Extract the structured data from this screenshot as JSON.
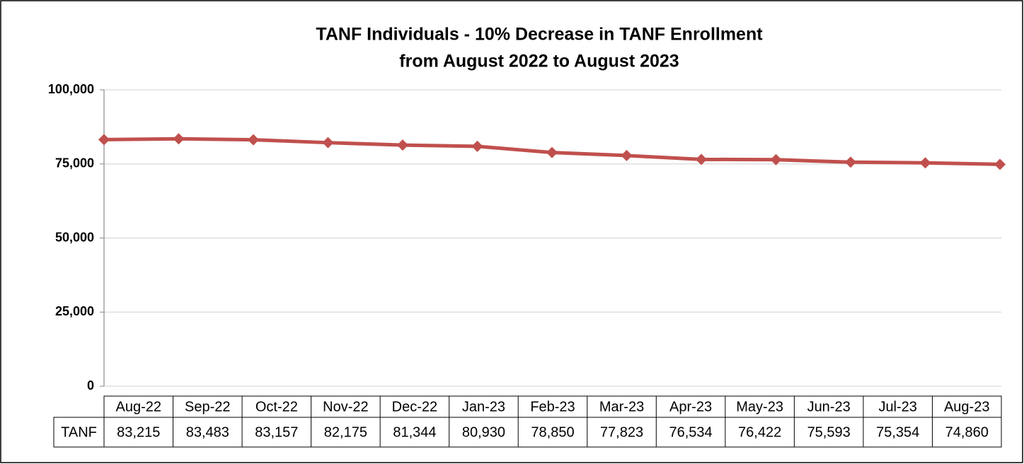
{
  "chart_data": {
    "type": "line",
    "title": [
      "TANF Individuals - 10% Decrease in TANF Enrollment",
      "from August 2022 to August 2023"
    ],
    "categories": [
      "Aug-22",
      "Sep-22",
      "Oct-22",
      "Nov-22",
      "Dec-22",
      "Jan-23",
      "Feb-23",
      "Mar-23",
      "Apr-23",
      "May-23",
      "Jun-23",
      "Jul-23",
      "Aug-23"
    ],
    "series": [
      {
        "name": "TANF",
        "color": "#c0504d",
        "values": [
          83215,
          83483,
          83157,
          82175,
          81344,
          80930,
          78850,
          77823,
          76534,
          76422,
          75593,
          75354,
          74860
        ],
        "value_labels": [
          "83,215",
          "83,483",
          "83,157",
          "82,175",
          "81,344",
          "80,930",
          "78,850",
          "77,823",
          "76,534",
          "76,422",
          "75,593",
          "75,354",
          "74,860"
        ]
      }
    ],
    "ylim": [
      0,
      100000
    ],
    "yticks": [
      0,
      {
        "value": 25000,
        "label": "25,000"
      },
      {
        "value": 50000,
        "label": "50,000"
      },
      {
        "value": 75000,
        "label": "75,000"
      },
      {
        "value": 100000,
        "label": "100,000"
      }
    ],
    "grid": true
  }
}
